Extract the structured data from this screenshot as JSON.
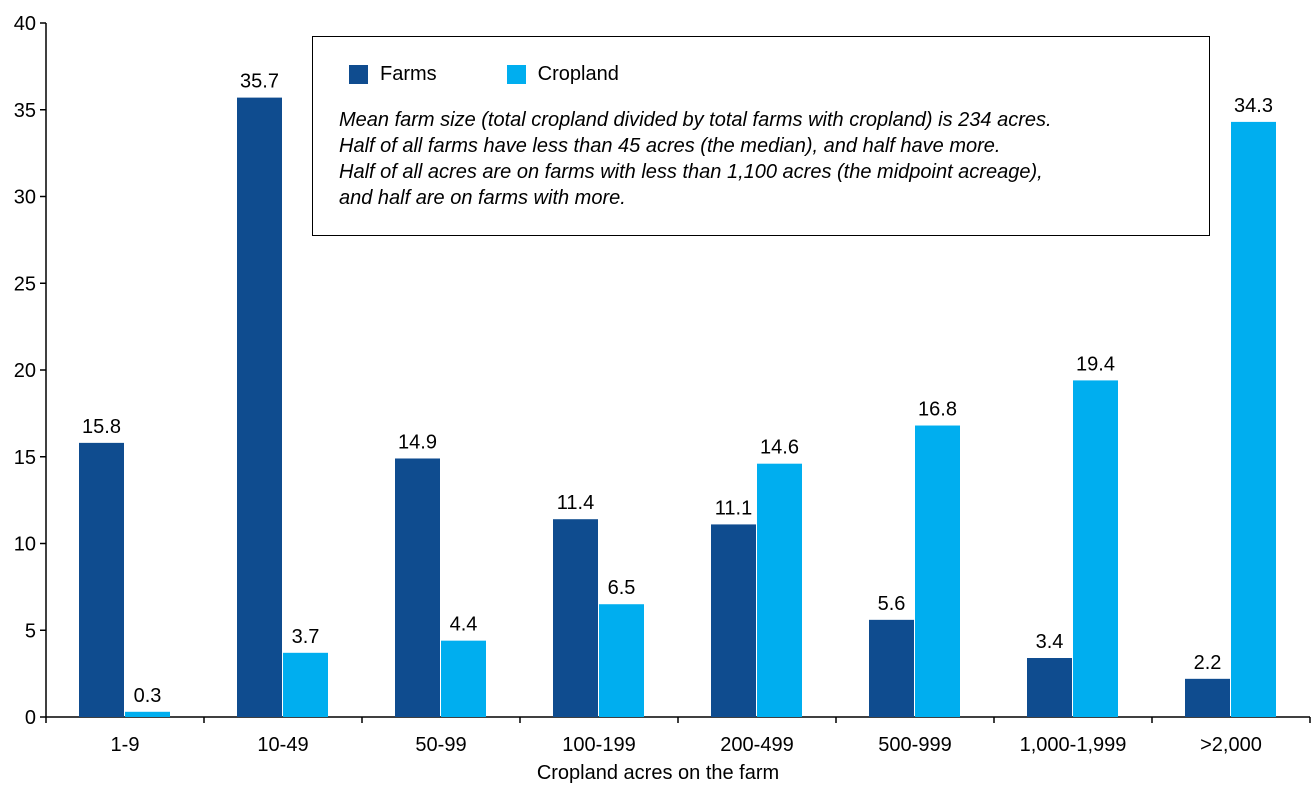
{
  "chart_data": {
    "type": "bar",
    "categories": [
      "1-9",
      "10-49",
      "50-99",
      "100-199",
      "200-499",
      "500-999",
      "1,000-1,999",
      ">2,000"
    ],
    "series": [
      {
        "name": "Farms",
        "color": "#0f4c8f",
        "values": [
          15.8,
          35.7,
          14.9,
          11.4,
          11.1,
          5.6,
          3.4,
          2.2
        ],
        "labels": [
          "15.8",
          "35.7",
          "14.9",
          "11.4",
          "11.1",
          "5.6",
          "3.4",
          "2.2"
        ]
      },
      {
        "name": "Cropland",
        "color": "#00aeef",
        "values": [
          0.3,
          3.7,
          4.4,
          6.5,
          14.6,
          16.8,
          19.4,
          34.3
        ],
        "labels": [
          "0.3",
          "3.7",
          "4.4",
          "6.5",
          "14.6",
          "16.8",
          "19.4",
          "34.3"
        ]
      }
    ],
    "xlabel": "Cropland acres on the farm",
    "ylabel": "",
    "ylim": [
      0,
      40
    ],
    "yticks": [
      "0",
      "5",
      "10",
      "15",
      "20",
      "25",
      "30",
      "35",
      "40"
    ],
    "legend_position": "top-center",
    "grid": false,
    "annotation": [
      "Mean farm size (total cropland divided by total farms with cropland) is 234 acres.",
      "Half of all farms have less than 45 acres (the median), and half have more.",
      "Half of all acres are on farms with less than 1,100 acres (the midpoint acreage),",
      "and half are on farms with more."
    ]
  }
}
